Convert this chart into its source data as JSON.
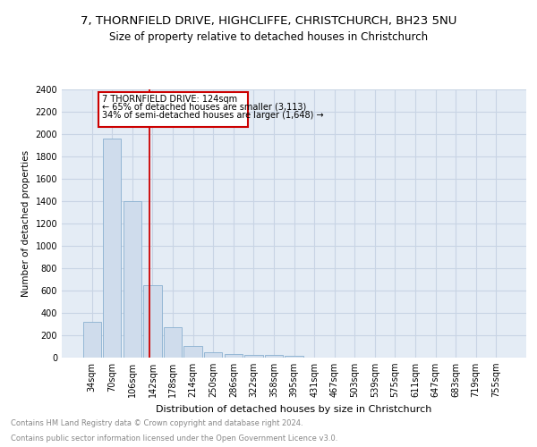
{
  "title1": "7, THORNFIELD DRIVE, HIGHCLIFFE, CHRISTCHURCH, BH23 5NU",
  "title2": "Size of property relative to detached houses in Christchurch",
  "xlabel": "Distribution of detached houses by size in Christchurch",
  "ylabel": "Number of detached properties",
  "categories": [
    "34sqm",
    "70sqm",
    "106sqm",
    "142sqm",
    "178sqm",
    "214sqm",
    "250sqm",
    "286sqm",
    "322sqm",
    "358sqm",
    "395sqm",
    "431sqm",
    "467sqm",
    "503sqm",
    "539sqm",
    "575sqm",
    "611sqm",
    "647sqm",
    "683sqm",
    "719sqm",
    "755sqm"
  ],
  "values": [
    320,
    1960,
    1400,
    645,
    275,
    105,
    50,
    35,
    25,
    25,
    20,
    0,
    0,
    0,
    0,
    0,
    0,
    0,
    0,
    0,
    0
  ],
  "bar_color": "#cfdcec",
  "bar_edge_color": "#8ab0d0",
  "grid_color": "#c8d4e4",
  "background_color": "#e4ecf5",
  "red_line_x": 2.83,
  "annotation_line1": "7 THORNFIELD DRIVE: 124sqm",
  "annotation_line2": "← 65% of detached houses are smaller (3,113)",
  "annotation_line3": "34% of semi-detached houses are larger (1,648) →",
  "annotation_box_color": "#cc0000",
  "ylim": [
    0,
    2400
  ],
  "yticks": [
    0,
    200,
    400,
    600,
    800,
    1000,
    1200,
    1400,
    1600,
    1800,
    2000,
    2200,
    2400
  ],
  "footer1": "Contains HM Land Registry data © Crown copyright and database right 2024.",
  "footer2": "Contains public sector information licensed under the Open Government Licence v3.0.",
  "title1_fontsize": 9.5,
  "title2_fontsize": 8.5,
  "tick_fontsize": 7,
  "ylabel_fontsize": 7.5,
  "xlabel_fontsize": 8,
  "footer_fontsize": 6,
  "ann_fontsize": 7
}
